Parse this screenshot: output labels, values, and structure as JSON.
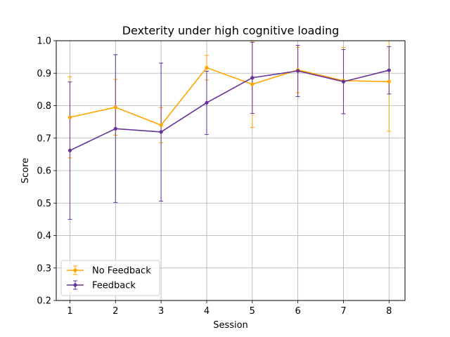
{
  "chart_data": {
    "type": "line",
    "title": "Dexterity under high cognitive loading",
    "xlabel": "Session",
    "ylabel": "Score",
    "xlim": [
      0.7,
      8.35
    ],
    "ylim": [
      0.2,
      1.0
    ],
    "x": [
      1,
      2,
      3,
      4,
      5,
      6,
      7,
      8
    ],
    "xticks": [
      "1",
      "2",
      "3",
      "4",
      "5",
      "6",
      "7",
      "8"
    ],
    "yticks": [
      "0.2",
      "0.3",
      "0.4",
      "0.5",
      "0.6",
      "0.7",
      "0.8",
      "0.9",
      "1.0"
    ],
    "grid": true,
    "legend_position": "lower-left",
    "error_bars": true,
    "series": [
      {
        "name": "No Feedback",
        "color": "#ffa500",
        "marker": "point",
        "values": [
          0.764,
          0.795,
          0.74,
          0.917,
          0.866,
          0.91,
          0.877,
          0.874
        ],
        "err_low": [
          0.639,
          0.709,
          0.686,
          0.879,
          0.733,
          0.84,
          0.775,
          0.721
        ],
        "err_high": [
          0.889,
          0.881,
          0.794,
          0.955,
          0.999,
          0.98,
          0.979,
          1.0
        ]
      },
      {
        "name": "Feedback",
        "color": "#663399",
        "marker": "point",
        "values": [
          0.662,
          0.729,
          0.719,
          0.809,
          0.886,
          0.907,
          0.874,
          0.909
        ],
        "err_low": [
          0.45,
          0.502,
          0.506,
          0.711,
          0.776,
          0.828,
          0.775,
          0.836
        ],
        "err_high": [
          0.873,
          0.957,
          0.931,
          0.906,
          0.995,
          0.986,
          0.973,
          0.982
        ]
      }
    ]
  }
}
